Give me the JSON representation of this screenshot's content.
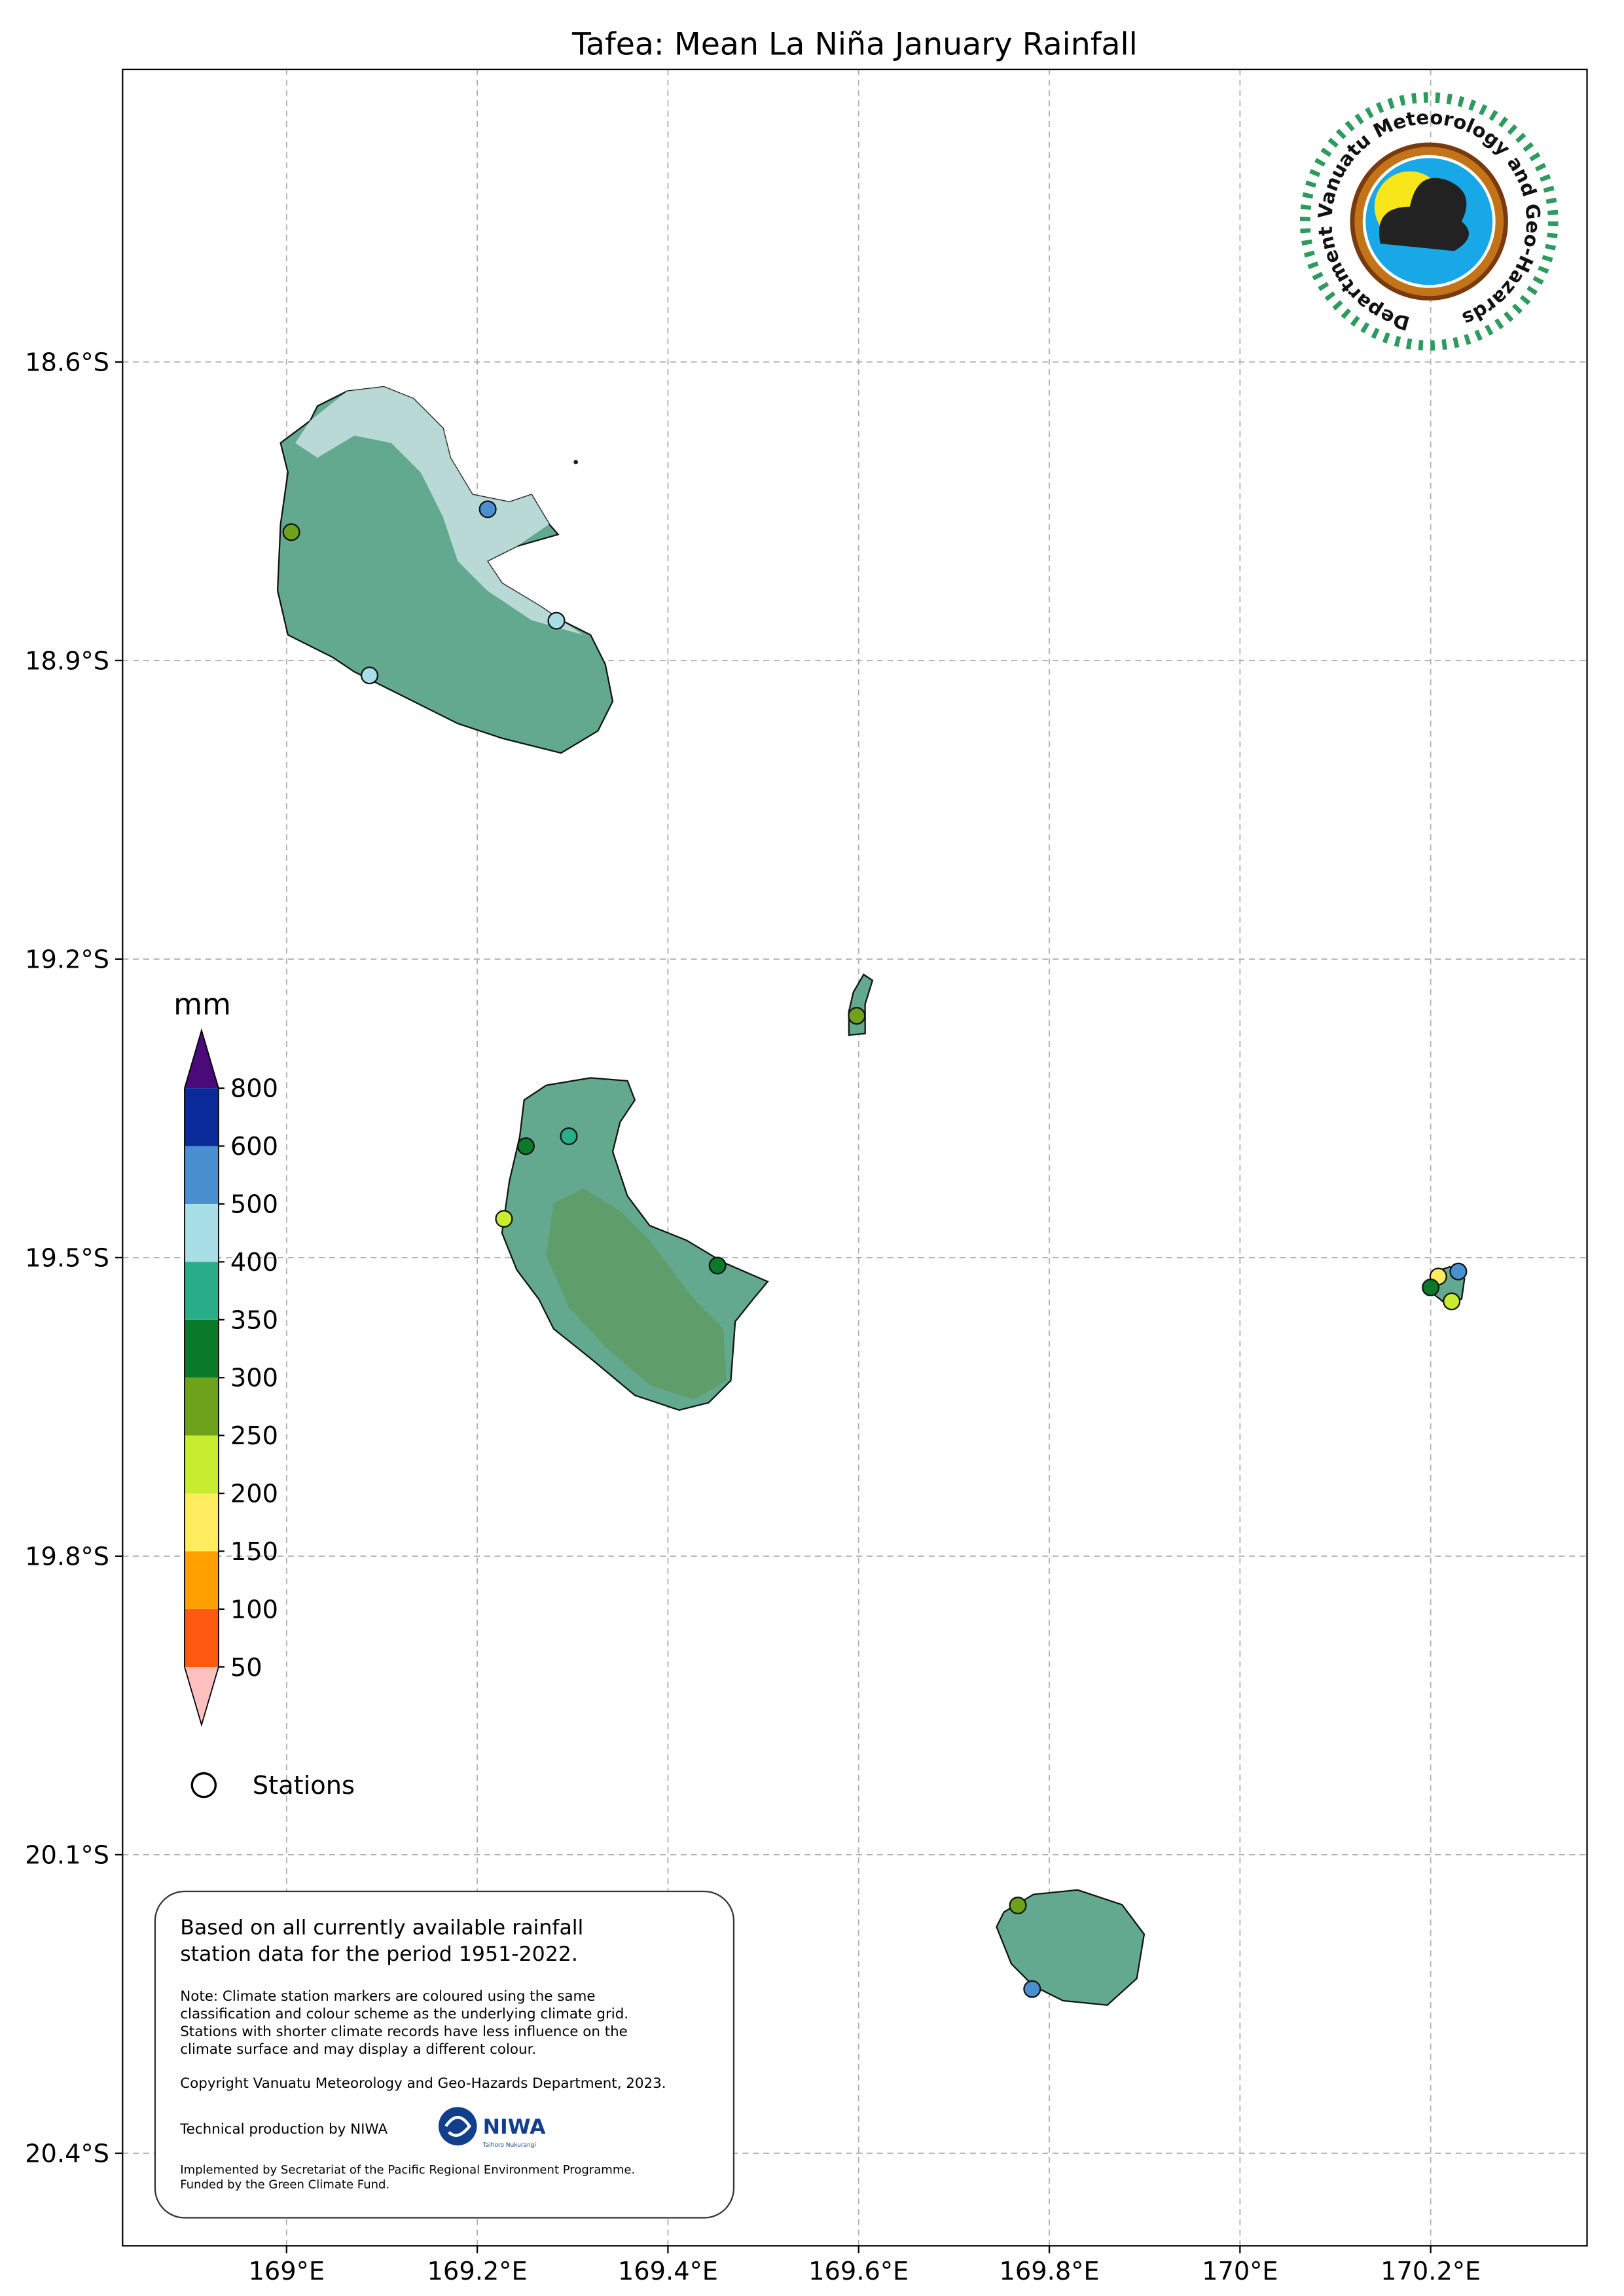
{
  "title": "Tafea: Mean La Niña January Rainfall",
  "map": {
    "xlim": [
      168.828,
      170.364
    ],
    "ylim": [
      -20.493,
      -18.306
    ],
    "grid": true,
    "xticks": [
      {
        "value": 169,
        "label": "169°E"
      },
      {
        "value": 169.2,
        "label": "169.2°E"
      },
      {
        "value": 169.4,
        "label": "169.4°E"
      },
      {
        "value": 169.6,
        "label": "169.6°E"
      },
      {
        "value": 169.8,
        "label": "169.8°E"
      },
      {
        "value": 170,
        "label": "170°E"
      },
      {
        "value": 170.2,
        "label": "170.2°E"
      }
    ],
    "yticks": [
      {
        "value": -18.6,
        "label": "18.6°S"
      },
      {
        "value": -18.9,
        "label": "18.9°S"
      },
      {
        "value": -19.2,
        "label": "19.2°S"
      },
      {
        "value": -19.5,
        "label": "19.5°S"
      },
      {
        "value": -19.8,
        "label": "19.8°S"
      },
      {
        "value": -20.1,
        "label": "20.1°S"
      },
      {
        "value": -20.4,
        "label": "20.4°S"
      }
    ]
  },
  "stations": [
    {
      "lon": 169.005,
      "lat": -18.771,
      "color": "#6ea21a"
    },
    {
      "lon": 169.211,
      "lat": -18.748,
      "color": "#4a90d0"
    },
    {
      "lon": 169.283,
      "lat": -18.86,
      "color": "#a8dfe6"
    },
    {
      "lon": 169.087,
      "lat": -18.915,
      "color": "#a8dfe6"
    },
    {
      "lon": 169.598,
      "lat": -19.257,
      "color": "#6ea21a"
    },
    {
      "lon": 169.251,
      "lat": -19.388,
      "color": "#0a7a2a"
    },
    {
      "lon": 169.296,
      "lat": -19.378,
      "color": "#2aae8a"
    },
    {
      "lon": 169.228,
      "lat": -19.461,
      "color": "#c8ec30"
    },
    {
      "lon": 169.452,
      "lat": -19.508,
      "color": "#0a7a2a"
    },
    {
      "lon": 170.208,
      "lat": -19.519,
      "color": "#ffec60"
    },
    {
      "lon": 170.229,
      "lat": -19.514,
      "color": "#4a90d0"
    },
    {
      "lon": 170.2,
      "lat": -19.53,
      "color": "#0a7a2a"
    },
    {
      "lon": 170.222,
      "lat": -19.544,
      "color": "#c8ec30"
    },
    {
      "lon": 169.767,
      "lat": -20.151,
      "color": "#6ea21a"
    },
    {
      "lon": 169.782,
      "lat": -20.235,
      "color": "#4a90d0"
    }
  ],
  "colorbar": {
    "label": "mm",
    "ticks": [
      50,
      100,
      150,
      200,
      250,
      300,
      350,
      400,
      500,
      600,
      800
    ],
    "colors": [
      "#ff5a10",
      "#ffa000",
      "#ffec60",
      "#c8ec30",
      "#6ea21a",
      "#0a7a2a",
      "#2aae8a",
      "#a8dfe6",
      "#4a90d0",
      "#0a2a9a"
    ],
    "under_color": "#ffc0c0",
    "over_color": "#4a0a7a"
  },
  "legend": {
    "stations": "Stations"
  },
  "logo": {
    "text": "Department Vanuatu Meteorology and Geo-Hazards"
  },
  "notes": {
    "main": [
      "Based on all currently available rainfall",
      "station data for the period 1951-2022."
    ],
    "note": [
      "Note: Climate station markers are coloured using the same",
      "classification and colour scheme as the underlying climate grid.",
      "Stations with shorter climate records have less influence on the",
      "climate surface and may display a different colour."
    ],
    "copyright": "Copyright Vanuatu Meteorology and Geo-Hazards Department, 2023.",
    "production": "Technical production by NIWA",
    "niwa": "NIWA",
    "niwa_sub": "Taihoro Nukurangi",
    "funding": [
      "Implemented by Secretariat of the Pacific Regional Environment Programme.",
      "Funded by the Green Climate Fund."
    ]
  }
}
